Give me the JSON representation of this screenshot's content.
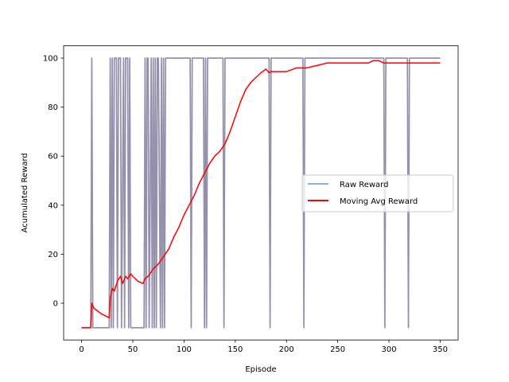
{
  "chart_data": {
    "type": "line",
    "title": "",
    "xlabel": "Episode",
    "ylabel": "Acumulated Reward",
    "xlim": [
      -17.5,
      367.5
    ],
    "ylim": [
      -15,
      105
    ],
    "x_ticks": [
      0,
      50,
      100,
      150,
      200,
      250,
      300,
      350
    ],
    "y_ticks": [
      0,
      20,
      40,
      60,
      80,
      100
    ],
    "grid": false,
    "legend_position": "center-right",
    "series": [
      {
        "name": "Raw Reward",
        "color": "#7fb2e5",
        "note_overlay_color": "#a07a88",
        "x": [
          0,
          9,
          10,
          11,
          27,
          28,
          29,
          30,
          31,
          32,
          34,
          35,
          36,
          38,
          39,
          41,
          42,
          43,
          45,
          46,
          47,
          48,
          61,
          62,
          63,
          64,
          65,
          66,
          68,
          69,
          70,
          71,
          72,
          73,
          74,
          75,
          77,
          78,
          79,
          80,
          81,
          82,
          106,
          107,
          108,
          119,
          120,
          121,
          122,
          123,
          138,
          139,
          140,
          183,
          184,
          185,
          216,
          217,
          218,
          295,
          296,
          297,
          318,
          319,
          320,
          350
        ],
        "values": [
          -10,
          -10,
          100,
          -10,
          -10,
          100,
          -10,
          100,
          -10,
          100,
          100,
          -10,
          100,
          100,
          -10,
          100,
          -10,
          100,
          100,
          -10,
          100,
          -10,
          -10,
          100,
          -10,
          100,
          100,
          -10,
          100,
          -10,
          100,
          -10,
          100,
          -10,
          100,
          100,
          -10,
          100,
          -10,
          100,
          -10,
          100,
          100,
          -10,
          100,
          100,
          -10,
          100,
          -10,
          100,
          100,
          -10,
          100,
          100,
          -10,
          100,
          100,
          -10,
          100,
          100,
          -10,
          100,
          100,
          -10,
          100,
          100
        ]
      },
      {
        "name": "Moving Avg Reward",
        "color": "#ff0000",
        "x": [
          0,
          9,
          10,
          12,
          15,
          20,
          25,
          27,
          28,
          30,
          32,
          35,
          38,
          40,
          43,
          45,
          48,
          50,
          55,
          60,
          62,
          65,
          70,
          75,
          80,
          85,
          90,
          95,
          100,
          105,
          110,
          115,
          120,
          125,
          130,
          135,
          140,
          145,
          150,
          155,
          160,
          165,
          170,
          175,
          180,
          183,
          185,
          190,
          200,
          210,
          220,
          225,
          230,
          240,
          250,
          260,
          270,
          280,
          285,
          290,
          295,
          300,
          310,
          318,
          320,
          330,
          350
        ],
        "values": [
          -10,
          -10,
          0,
          -2,
          -3,
          -4.5,
          -5.5,
          -6,
          2,
          6,
          5,
          9,
          11,
          8,
          11,
          10,
          12,
          11,
          9,
          8,
          10,
          11,
          14,
          16,
          19,
          22,
          27,
          31,
          36,
          40,
          44,
          49,
          53,
          57,
          60,
          62,
          65,
          70,
          76,
          82,
          87,
          90,
          92,
          94,
          95.5,
          94,
          94.5,
          94.5,
          94.5,
          96,
          96,
          96.5,
          97,
          98,
          98,
          98,
          98,
          98,
          99,
          99,
          98,
          98,
          98,
          98,
          98,
          98,
          98
        ]
      }
    ]
  }
}
